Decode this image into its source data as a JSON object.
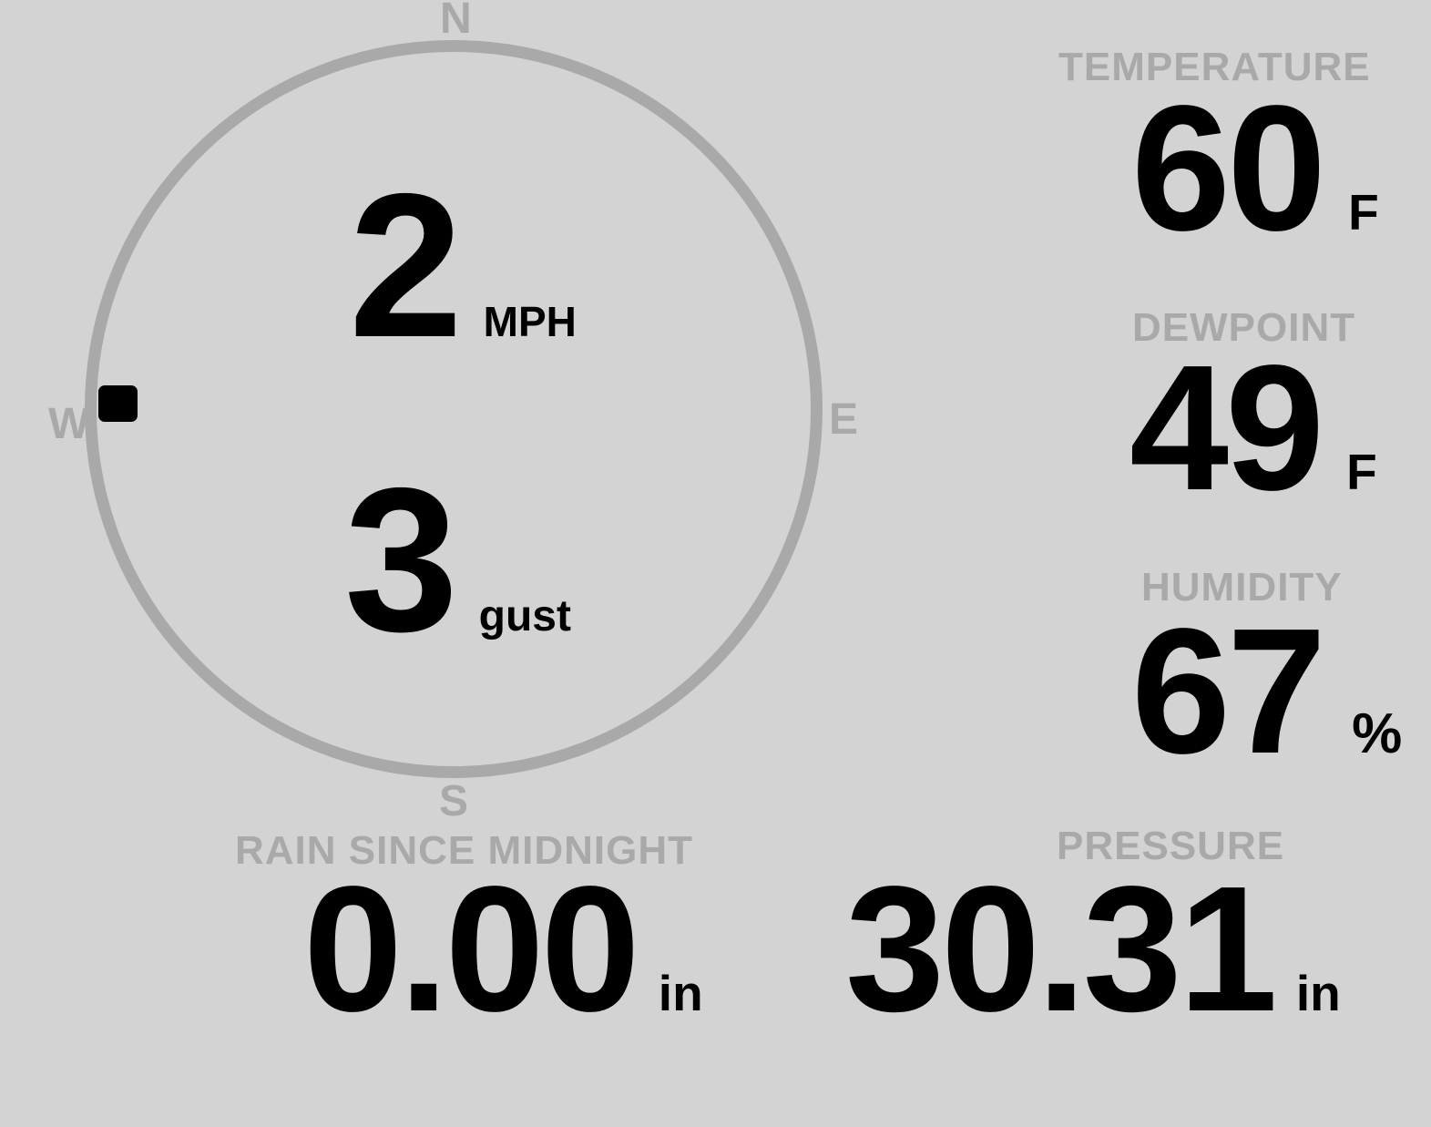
{
  "colors": {
    "background": "#d3d3d3",
    "muted": "#a9a9a9",
    "value": "#000000"
  },
  "wind": {
    "compass": {
      "north": "N",
      "east": "E",
      "south": "S",
      "west": "W"
    },
    "speed_value": "2",
    "speed_unit": "MPH",
    "gust_value": "3",
    "gust_unit": "gust",
    "direction": "W"
  },
  "temperature": {
    "label": "TEMPERATURE",
    "value": "60",
    "unit": "F"
  },
  "dewpoint": {
    "label": "DEWPOINT",
    "value": "49",
    "unit": "F"
  },
  "humidity": {
    "label": "HUMIDITY",
    "value": "67",
    "unit": "%"
  },
  "rain": {
    "label": "RAIN SINCE MIDNIGHT",
    "value": "0.00",
    "unit": "in"
  },
  "pressure": {
    "label": "PRESSURE",
    "value": "30.31",
    "unit": "in"
  }
}
